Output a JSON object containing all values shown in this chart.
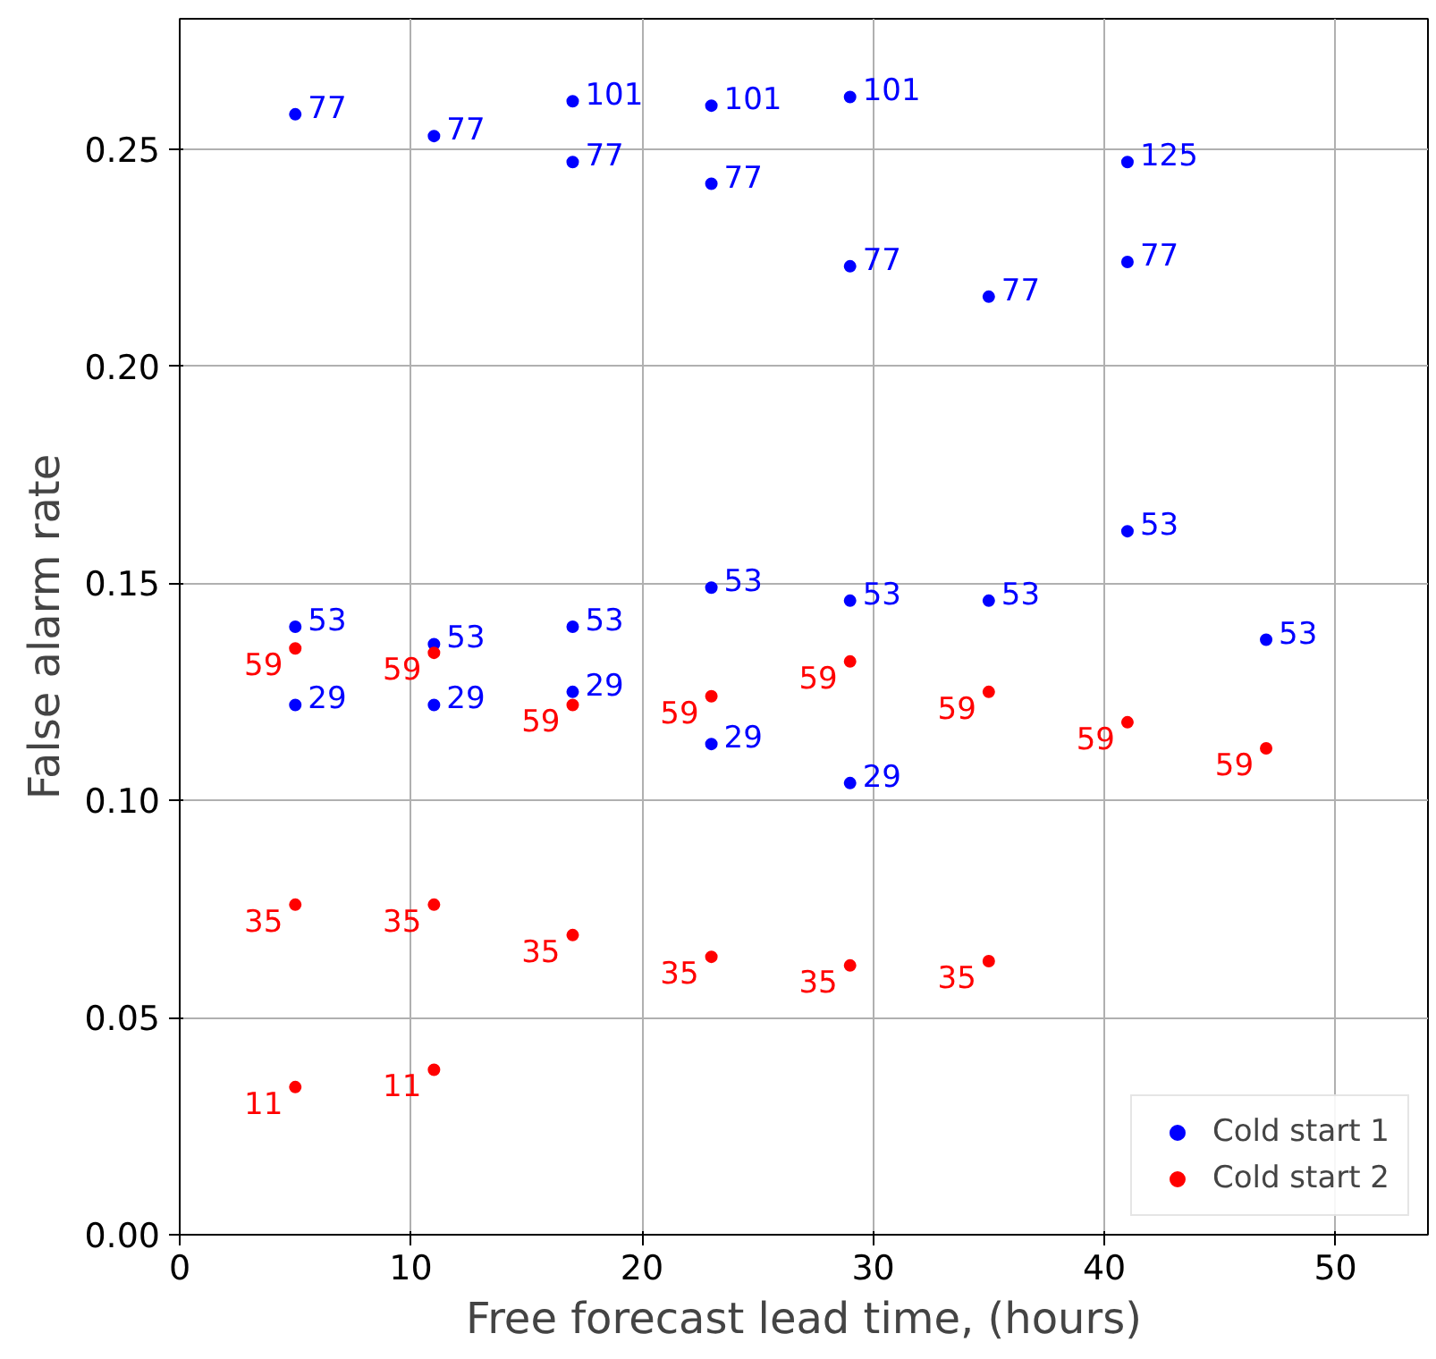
{
  "chart_data": {
    "type": "scatter",
    "xlabel": "Free forecast lead time, (hours)",
    "ylabel": "False alarm rate",
    "xlim": [
      0,
      54
    ],
    "xticks": [
      0,
      10,
      20,
      30,
      40,
      50
    ],
    "ylim": [
      0,
      0.28
    ],
    "yticks": [
      {
        "value": 0,
        "label": "0.00"
      },
      0.05,
      {
        "value": 0.1,
        "label": "0.10"
      },
      0.15,
      {
        "value": 0.2,
        "label": "0.20"
      },
      0.25
    ],
    "grid": true,
    "legend": "bottom right",
    "marker": "circle",
    "series": [
      {
        "name": "Cold start 1",
        "color": "#0000ff",
        "x": [
          5,
          5,
          5,
          11,
          11,
          11,
          17,
          17,
          17,
          17,
          23,
          23,
          23,
          23,
          29,
          29,
          29,
          29,
          35,
          35,
          41,
          41,
          41,
          47
        ],
        "values": [
          0.258,
          0.14,
          0.122,
          0.253,
          0.136,
          0.122,
          0.261,
          0.247,
          0.14,
          0.125,
          0.26,
          0.242,
          0.149,
          0.113,
          0.262,
          0.223,
          0.146,
          0.104,
          0.216,
          0.146,
          0.247,
          0.224,
          0.162,
          0.137
        ]
      },
      {
        "name": "Cold start 2",
        "color": "#ff0000",
        "x": [
          5,
          5,
          5,
          11,
          11,
          11,
          17,
          17,
          23,
          23,
          29,
          29,
          35,
          35,
          41,
          47
        ],
        "values": [
          0.135,
          0.076,
          0.034,
          0.134,
          0.076,
          0.038,
          0.122,
          0.069,
          0.124,
          0.064,
          0.132,
          0.062,
          0.125,
          0.063,
          0.118,
          0.112
        ]
      }
    ],
    "annotations": [
      {
        "text": "77",
        "x": 5,
        "y": 0.258
      },
      {
        "text": "53",
        "x": 5,
        "y": 0.14
      },
      {
        "text": "29",
        "x": 5,
        "y": 0.122
      },
      {
        "text": "77",
        "x": 11,
        "y": 0.253
      },
      {
        "text": "53",
        "x": 11,
        "y": 0.136
      },
      {
        "text": "29",
        "x": 11,
        "y": 0.122
      },
      {
        "text": "101",
        "x": 17,
        "y": 0.261
      },
      {
        "text": "77",
        "x": 17,
        "y": 0.247
      },
      {
        "text": "53",
        "x": 17,
        "y": 0.14
      },
      {
        "text": "29",
        "x": 17,
        "y": 0.125
      },
      {
        "text": "101",
        "x": 23,
        "y": 0.26
      },
      {
        "text": "77",
        "x": 23,
        "y": 0.242
      },
      {
        "text": "53",
        "x": 23,
        "y": 0.149
      },
      {
        "text": "29",
        "x": 23,
        "y": 0.113
      },
      {
        "text": "101",
        "x": 29,
        "y": 0.262
      },
      {
        "text": "77",
        "x": 29,
        "y": 0.223
      },
      {
        "text": "53",
        "x": 29,
        "y": 0.146
      },
      {
        "text": "29",
        "x": 29,
        "y": 0.104
      },
      {
        "text": "77",
        "x": 35,
        "y": 0.216
      },
      {
        "text": "53",
        "x": 35,
        "y": 0.146
      },
      {
        "text": "125",
        "x": 41,
        "y": 0.247
      },
      {
        "text": "77",
        "x": 41,
        "y": 0.224
      },
      {
        "text": "53",
        "x": 41,
        "y": 0.162
      },
      {
        "text": "53",
        "x": 47,
        "y": 0.137
      },
      {
        "text": "59",
        "x": 5,
        "y": 0.135
      },
      {
        "text": "35",
        "x": 5,
        "y": 0.076
      },
      {
        "text": "11",
        "x": 5,
        "y": 0.034
      },
      {
        "text": "59",
        "x": 11,
        "y": 0.134
      },
      {
        "text": "35",
        "x": 11,
        "y": 0.076
      },
      {
        "text": "11",
        "x": 11,
        "y": 0.038
      },
      {
        "text": "59",
        "x": 17,
        "y": 0.122
      },
      {
        "text": "35",
        "x": 17,
        "y": 0.069
      },
      {
        "text": "59",
        "x": 23,
        "y": 0.124
      },
      {
        "text": "35",
        "x": 23,
        "y": 0.064
      },
      {
        "text": "59",
        "x": 29,
        "y": 0.132
      },
      {
        "text": "35",
        "x": 29,
        "y": 0.062
      },
      {
        "text": "59",
        "x": 35,
        "y": 0.125
      },
      {
        "text": "35",
        "x": 35,
        "y": 0.063
      },
      {
        "text": "59",
        "x": 41,
        "y": 0.118
      },
      {
        "text": "59",
        "x": 47,
        "y": 0.112
      }
    ]
  }
}
